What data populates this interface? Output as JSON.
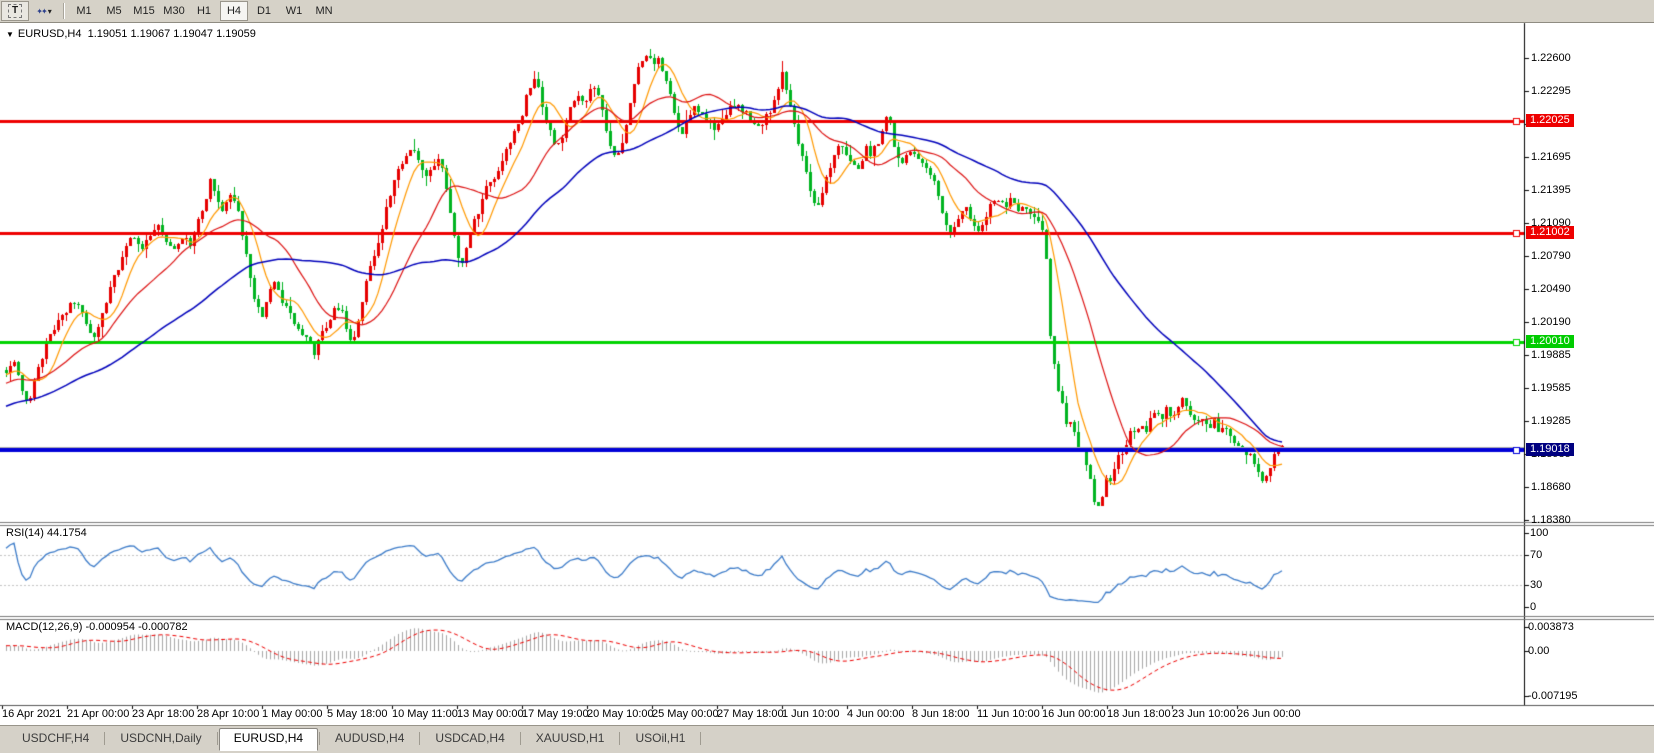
{
  "icons": {
    "collapse_triangle": "▼",
    "dropdown_caret": "▾",
    "sparkle": "✦✦"
  },
  "toolbar": {
    "text_tool_label": "T",
    "timeframes": [
      "M1",
      "M5",
      "M15",
      "M30",
      "H1",
      "H4",
      "D1",
      "W1",
      "MN"
    ],
    "active_timeframe": "H4"
  },
  "window": {
    "title_symbol": "EURUSD,H4",
    "title_ohlc": "1.19051 1.19067 1.19047 1.19059"
  },
  "rsi_panel": {
    "label": "RSI(14) 44.1754"
  },
  "macd_panel": {
    "label": "MACD(12,26,9) -0.000954 -0.000782"
  },
  "tabs": {
    "items": [
      "USDCHF,H4",
      "USDCNH,Daily",
      "EURUSD,H4",
      "AUDUSD,H4",
      "USDCAD,H4",
      "XAUUSD,H1",
      "USOil,H1"
    ],
    "active": "EURUSD,H4"
  },
  "chart_data": {
    "type": "candlestick",
    "symbol": "EURUSD",
    "timeframe": "H4",
    "last_bar": {
      "open": 1.19051,
      "high": 1.19067,
      "low": 1.19047,
      "close": 1.19059
    },
    "current_price": 1.19051,
    "price_axis": {
      "ticks": [
        "1.22600",
        "1.22295",
        "1.21995",
        "1.21695",
        "1.21395",
        "1.21090",
        "1.20790",
        "1.20490",
        "1.20190",
        "1.19885",
        "1.19585",
        "1.19285",
        "1.18985",
        "1.18680",
        "1.18380"
      ]
    },
    "time_axis": [
      "16 Apr 2021",
      "21 Apr 00:00",
      "23 Apr 18:00",
      "28 Apr 10:00",
      "1 May 00:00",
      "5 May 18:00",
      "10 May 11:00",
      "13 May 00:00",
      "17 May 19:00",
      "20 May 10:00",
      "25 May 00:00",
      "27 May 18:00",
      "1 Jun 10:00",
      "4 Jun 00:00",
      "8 Jun 18:00",
      "11 Jun 10:00",
      "16 Jun 00:00",
      "18 Jun 18:00",
      "23 Jun 10:00",
      "26 Jun 00:00"
    ],
    "horizontal_lines": [
      {
        "price": 1.22025,
        "label": "1.22025",
        "color": "#ee0000",
        "label_bg": "#ee0000",
        "width": 3
      },
      {
        "price": 1.21002,
        "label": "1.21002",
        "color": "#ee0000",
        "label_bg": "#ee0000",
        "width": 3
      },
      {
        "price": 1.2001,
        "label": "1.20010",
        "color": "#00d400",
        "label_bg": "#00cc00",
        "width": 3
      },
      {
        "price": 1.19018,
        "label": "1.19018",
        "color": "#0000d8",
        "label_bg": "#000080",
        "width": 4
      }
    ],
    "colors": {
      "up": "#e60000",
      "down": "#00b421",
      "ma_fast": "#ff9900",
      "ma_mid": "#dd1111",
      "ma_slow": "#0000bb",
      "rsi": "#3d7cc9",
      "rsi_levels": "#c4c4c4",
      "macd_hist": "#a8a8a8",
      "macd_signal": "#ee0000",
      "current_price_line": "#b0b0b0"
    },
    "moving_average_periods": [
      8,
      21,
      55
    ],
    "rsi": {
      "period": 14,
      "value": 44.1754,
      "levels": [
        30,
        70
      ],
      "ticks": [
        "100",
        "70",
        "30",
        "0"
      ]
    },
    "macd": {
      "fast": 12,
      "slow": 26,
      "signal": 9,
      "macd_value": -0.000954,
      "signal_value": -0.000782,
      "axis_ticks": [
        "0.003873",
        "0.00",
        "-0.007195"
      ]
    },
    "price_path": [
      [
        2,
        1.1972
      ],
      [
        14,
        1.1982
      ],
      [
        22,
        1.1958
      ],
      [
        28,
        1.1945
      ],
      [
        36,
        1.1972
      ],
      [
        46,
        1.1998
      ],
      [
        56,
        1.2018
      ],
      [
        67,
        1.2032
      ],
      [
        76,
        1.204
      ],
      [
        85,
        1.2018
      ],
      [
        93,
        1.2005
      ],
      [
        101,
        1.2025
      ],
      [
        110,
        1.2048
      ],
      [
        119,
        1.2072
      ],
      [
        126,
        1.2088
      ],
      [
        132,
        1.2098
      ],
      [
        140,
        1.2085
      ],
      [
        149,
        1.2098
      ],
      [
        158,
        1.2108
      ],
      [
        166,
        1.209
      ],
      [
        175,
        1.2082
      ],
      [
        184,
        1.2098
      ],
      [
        191,
        1.209
      ],
      [
        197,
        1.2108
      ],
      [
        204,
        1.2125
      ],
      [
        210,
        1.2148
      ],
      [
        216,
        1.213
      ],
      [
        223,
        1.2122
      ],
      [
        230,
        1.2138
      ],
      [
        236,
        1.2128
      ],
      [
        242,
        1.2098
      ],
      [
        249,
        1.2062
      ],
      [
        256,
        1.2035
      ],
      [
        262,
        1.2022
      ],
      [
        269,
        1.2045
      ],
      [
        275,
        1.2055
      ],
      [
        281,
        1.2035
      ],
      [
        288,
        1.2032
      ],
      [
        295,
        1.2018
      ],
      [
        301,
        1.201
      ],
      [
        308,
        1.1998
      ],
      [
        314,
        1.1992
      ],
      [
        320,
        1.2012
      ],
      [
        327,
        1.201
      ],
      [
        334,
        1.2028
      ],
      [
        340,
        1.2035
      ],
      [
        347,
        1.2008
      ],
      [
        353,
        1.1998
      ],
      [
        360,
        1.2028
      ],
      [
        366,
        1.2055
      ],
      [
        373,
        1.2078
      ],
      [
        379,
        1.2092
      ],
      [
        386,
        1.212
      ],
      [
        392,
        1.2145
      ],
      [
        399,
        1.2158
      ],
      [
        405,
        1.2168
      ],
      [
        412,
        1.2175
      ],
      [
        418,
        1.2168
      ],
      [
        425,
        1.2152
      ],
      [
        431,
        1.2158
      ],
      [
        437,
        1.2168
      ],
      [
        444,
        1.2152
      ],
      [
        450,
        1.212
      ],
      [
        457,
        1.2082
      ],
      [
        463,
        1.2072
      ],
      [
        470,
        1.21
      ],
      [
        477,
        1.2118
      ],
      [
        483,
        1.2135
      ],
      [
        490,
        1.2148
      ],
      [
        496,
        1.2155
      ],
      [
        503,
        1.2168
      ],
      [
        509,
        1.218
      ],
      [
        516,
        1.2195
      ],
      [
        522,
        1.221
      ],
      [
        528,
        1.2232
      ],
      [
        534,
        1.2242
      ],
      [
        540,
        1.2228
      ],
      [
        546,
        1.22
      ],
      [
        553,
        1.2185
      ],
      [
        559,
        1.2178
      ],
      [
        565,
        1.2195
      ],
      [
        571,
        1.2218
      ],
      [
        577,
        1.2228
      ],
      [
        583,
        1.2215
      ],
      [
        587,
        1.2222
      ],
      [
        593,
        1.2235
      ],
      [
        599,
        1.2222
      ],
      [
        605,
        1.2198
      ],
      [
        611,
        1.2178
      ],
      [
        617,
        1.2168
      ],
      [
        623,
        1.2188
      ],
      [
        629,
        1.2215
      ],
      [
        635,
        1.2242
      ],
      [
        641,
        1.2258
      ],
      [
        647,
        1.2265
      ],
      [
        652,
        1.2255
      ],
      [
        657,
        1.2262
      ],
      [
        663,
        1.2248
      ],
      [
        669,
        1.2228
      ],
      [
        675,
        1.2205
      ],
      [
        681,
        1.2188
      ],
      [
        687,
        1.2202
      ],
      [
        693,
        1.2218
      ],
      [
        699,
        1.2212
      ],
      [
        705,
        1.2202
      ],
      [
        711,
        1.2198
      ],
      [
        717,
        1.2195
      ],
      [
        723,
        1.2205
      ],
      [
        729,
        1.2212
      ],
      [
        735,
        1.2218
      ],
      [
        741,
        1.2212
      ],
      [
        747,
        1.2208
      ],
      [
        753,
        1.2202
      ],
      [
        759,
        1.2198
      ],
      [
        765,
        1.2205
      ],
      [
        771,
        1.2215
      ],
      [
        777,
        1.2228
      ],
      [
        782,
        1.2248
      ],
      [
        786,
        1.2228
      ],
      [
        792,
        1.2205
      ],
      [
        798,
        1.2182
      ],
      [
        804,
        1.2165
      ],
      [
        810,
        1.2142
      ],
      [
        816,
        1.2122
      ],
      [
        822,
        1.2138
      ],
      [
        828,
        1.2158
      ],
      [
        834,
        1.2172
      ],
      [
        840,
        1.218
      ],
      [
        847,
        1.2172
      ],
      [
        853,
        1.2162
      ],
      [
        859,
        1.2155
      ],
      [
        865,
        1.2182
      ],
      [
        871,
        1.2172
      ],
      [
        877,
        1.2182
      ],
      [
        883,
        1.2192
      ],
      [
        887,
        1.2215
      ],
      [
        891,
        1.2192
      ],
      [
        897,
        1.2172
      ],
      [
        903,
        1.2162
      ],
      [
        909,
        1.2175
      ],
      [
        915,
        1.2172
      ],
      [
        921,
        1.2165
      ],
      [
        927,
        1.2158
      ],
      [
        933,
        1.2148
      ],
      [
        939,
        1.213
      ],
      [
        945,
        1.2112
      ],
      [
        951,
        1.2098
      ],
      [
        957,
        1.2112
      ],
      [
        963,
        1.2125
      ],
      [
        969,
        1.2118
      ],
      [
        975,
        1.2108
      ],
      [
        981,
        1.2102
      ],
      [
        987,
        1.2118
      ],
      [
        993,
        1.2128
      ],
      [
        999,
        1.2132
      ],
      [
        1005,
        1.2125
      ],
      [
        1011,
        1.213
      ],
      [
        1017,
        1.2122
      ],
      [
        1023,
        1.2128
      ],
      [
        1029,
        1.212
      ],
      [
        1035,
        1.2112
      ],
      [
        1041,
        1.2105
      ],
      [
        1045,
        1.2098
      ],
      [
        1048,
        1.2035
      ],
      [
        1051,
        1.1995
      ],
      [
        1055,
        1.1972
      ],
      [
        1059,
        1.1952
      ],
      [
        1063,
        1.1938
      ],
      [
        1067,
        1.1925
      ],
      [
        1071,
        1.1932
      ],
      [
        1075,
        1.1912
      ],
      [
        1079,
        1.1898
      ],
      [
        1083,
        1.1905
      ],
      [
        1087,
        1.1885
      ],
      [
        1091,
        1.1868
      ],
      [
        1095,
        1.1852
      ],
      [
        1099,
        1.1848
      ],
      [
        1103,
        1.1862
      ],
      [
        1107,
        1.1878
      ],
      [
        1111,
        1.1868
      ],
      [
        1115,
        1.1888
      ],
      [
        1119,
        1.1902
      ],
      [
        1123,
        1.1895
      ],
      [
        1127,
        1.1912
      ],
      [
        1131,
        1.1925
      ],
      [
        1136,
        1.1915
      ],
      [
        1141,
        1.1928
      ],
      [
        1146,
        1.192
      ],
      [
        1151,
        1.1932
      ],
      [
        1156,
        1.1938
      ],
      [
        1161,
        1.193
      ],
      [
        1166,
        1.1938
      ],
      [
        1172,
        1.1932
      ],
      [
        1178,
        1.1942
      ],
      [
        1184,
        1.1948
      ],
      [
        1190,
        1.1932
      ],
      [
        1196,
        1.1925
      ],
      [
        1202,
        1.1932
      ],
      [
        1208,
        1.1922
      ],
      [
        1214,
        1.1928
      ],
      [
        1220,
        1.1918
      ],
      [
        1226,
        1.1922
      ],
      [
        1232,
        1.1912
      ],
      [
        1238,
        1.1908
      ],
      [
        1244,
        1.19
      ],
      [
        1250,
        1.1895
      ],
      [
        1256,
        1.1888
      ],
      [
        1262,
        1.1872
      ],
      [
        1268,
        1.188
      ],
      [
        1274,
        1.1898
      ],
      [
        1280,
        1.1904
      ],
      [
        1285,
        1.1906
      ]
    ]
  }
}
